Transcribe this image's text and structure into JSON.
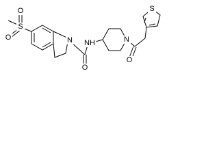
{
  "molecule": {
    "atoms": [
      {
        "label": "O"
      },
      {
        "label": "S"
      },
      {
        "label": "O"
      },
      {
        "label": "N"
      },
      {
        "label": "O"
      },
      {
        "label": "NH"
      },
      {
        "label": "N"
      },
      {
        "label": "O"
      },
      {
        "label": "S"
      }
    ]
  }
}
